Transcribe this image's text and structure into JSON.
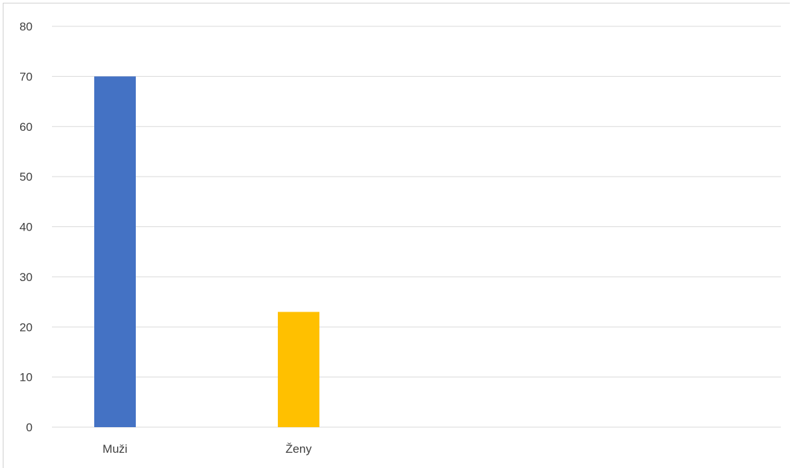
{
  "chart_data": {
    "type": "bar",
    "categories": [
      "Muži",
      "Ženy"
    ],
    "values": [
      70,
      23
    ],
    "colors": [
      "#4472C4",
      "#FFC000"
    ],
    "ylim": [
      0,
      80
    ],
    "yticks": [
      "0",
      "10",
      "20",
      "30",
      "40",
      "50",
      "60",
      "70",
      "80"
    ],
    "grid": true,
    "legend": "none",
    "title": "",
    "xlabel": "",
    "ylabel": ""
  }
}
